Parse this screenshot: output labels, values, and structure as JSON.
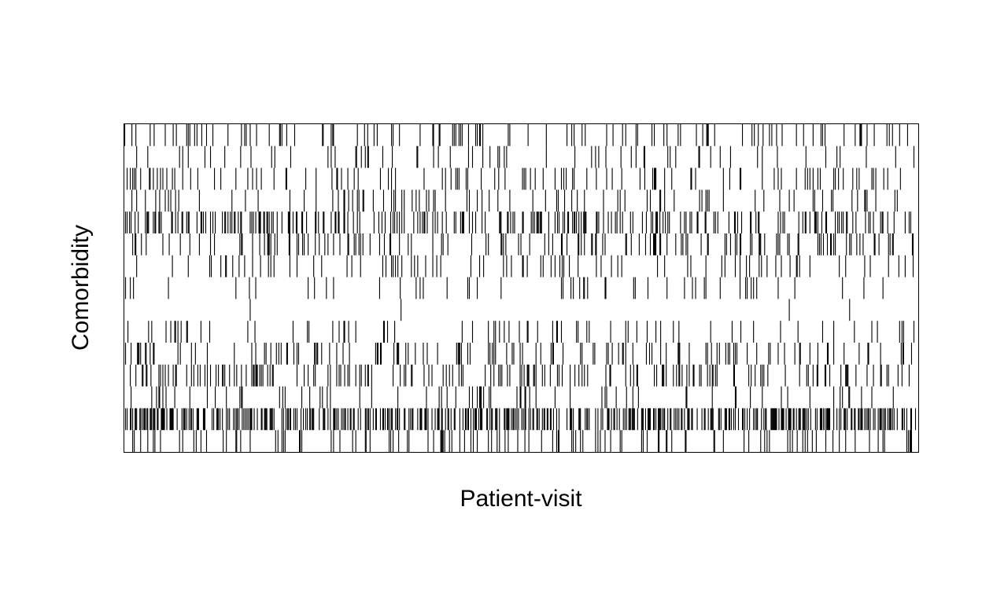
{
  "chart_data": {
    "type": "heatmap",
    "title": "",
    "xlabel": "Patient-visit",
    "ylabel": "Comorbidity",
    "n_rows": 15,
    "n_columns": 1000,
    "xlim": [
      0,
      1000
    ],
    "ylim": [
      0,
      15
    ],
    "grid": false,
    "legend": "none",
    "colors": {
      "present": "#000000",
      "absent": "#ffffff",
      "frame": "#000000"
    },
    "rows": [
      {
        "index": 1,
        "prevalence": 0.12
      },
      {
        "index": 2,
        "prevalence": 0.06
      },
      {
        "index": 3,
        "prevalence": 0.09
      },
      {
        "index": 4,
        "prevalence": 0.09
      },
      {
        "index": 5,
        "prevalence": 0.24
      },
      {
        "index": 6,
        "prevalence": 0.14
      },
      {
        "index": 7,
        "prevalence": 0.08
      },
      {
        "index": 8,
        "prevalence": 0.05
      },
      {
        "index": 9,
        "prevalence": 0.003
      },
      {
        "index": 10,
        "prevalence": 0.07
      },
      {
        "index": 11,
        "prevalence": 0.12
      },
      {
        "index": 12,
        "prevalence": 0.16
      },
      {
        "index": 13,
        "prevalence": 0.08
      },
      {
        "index": 14,
        "prevalence": 0.38
      },
      {
        "index": 15,
        "prevalence": 0.12
      }
    ]
  }
}
